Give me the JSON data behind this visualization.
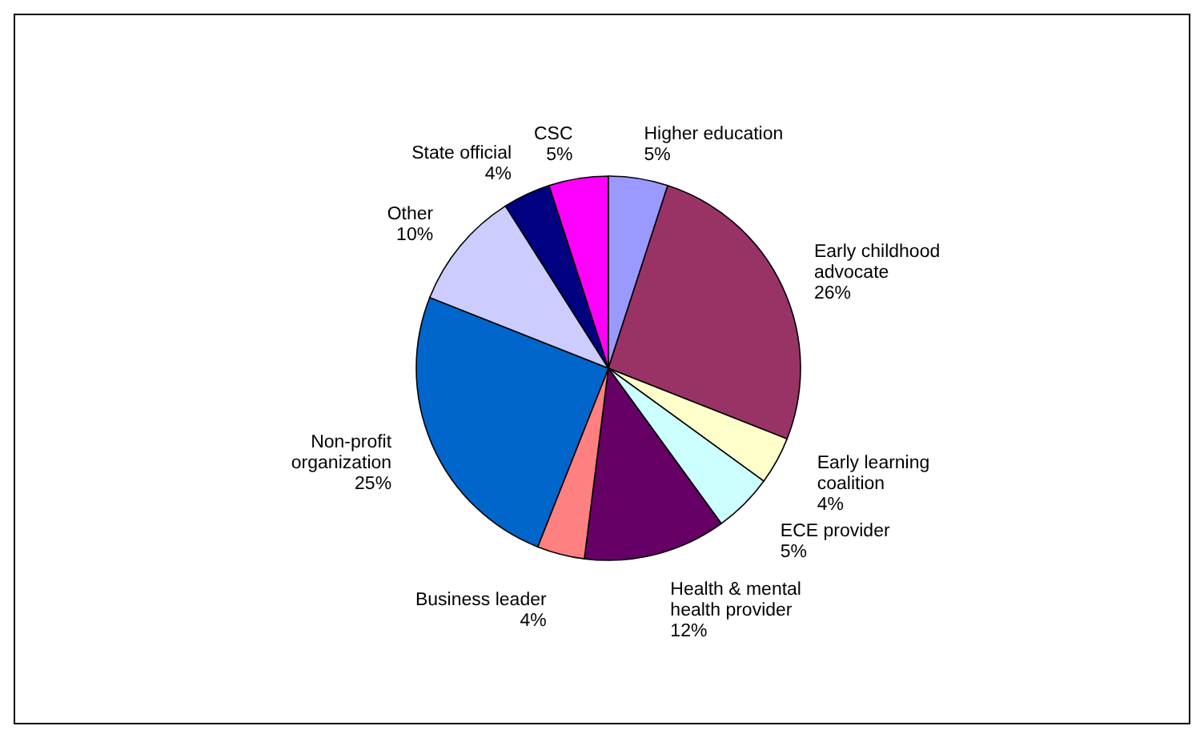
{
  "chart_data": {
    "type": "pie",
    "categories": [
      "Higher education",
      "Early childhood advocate",
      "Early learning coalition",
      "ECE provider",
      "Health & mental health provider",
      "Business leader",
      "Non-profit organization",
      "Other",
      "State official",
      "CSC"
    ],
    "values": [
      5,
      26,
      4,
      5,
      12,
      4,
      25,
      10,
      4,
      5
    ],
    "colors": [
      "#9999ff",
      "#993366",
      "#ffffcc",
      "#ccffff",
      "#660066",
      "#ff8080",
      "#0066cc",
      "#ccccff",
      "#000080",
      "#ff00ff"
    ],
    "value_labels": [
      "5%",
      "26%",
      "4%",
      "5%",
      "12%",
      "4%",
      "25%",
      "10%",
      "4%",
      "5%"
    ]
  }
}
